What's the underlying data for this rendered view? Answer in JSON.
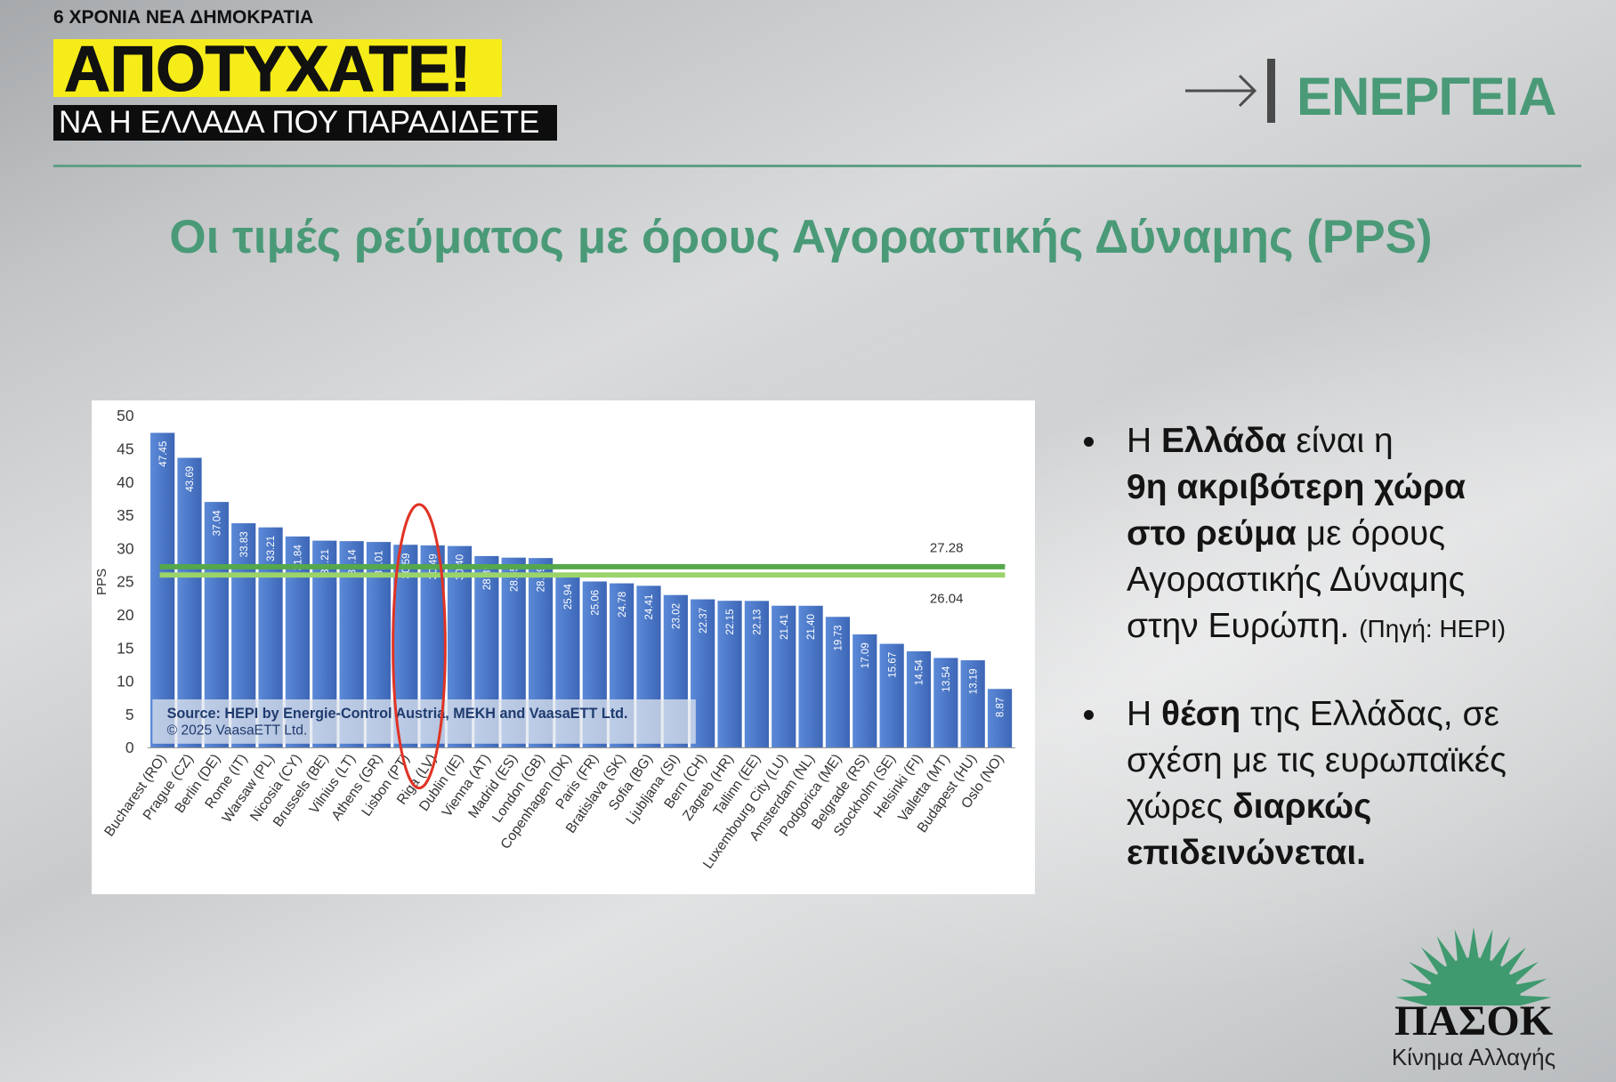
{
  "header": {
    "kicker": "6 ΧΡΟΝΙΑ ΝΕΑ ΔΗΜΟΚΡΑΤΙΑ",
    "headline": "ΑΠΟΤΥΧΑΤΕ!",
    "subheadline": "ΝΑ Η ΕΛΛΑΔΑ ΠΟΥ ΠΑΡΑΔΙΔΕΤΕ",
    "section_icon": "arrow-right-to-bar-icon",
    "section": "ΕΝΕΡΓΕΙΑ"
  },
  "slide": {
    "title": "Οι τιμές ρεύματος με όρους Αγοραστικής Δύναμης (PPS)"
  },
  "bullets": [
    {
      "lines": [
        [
          "Η ",
          "Ελλάδα",
          " είναι η"
        ],
        [
          "9η ακριβότερη χώρα"
        ],
        [
          "στο ρεύμα",
          " με όρους"
        ],
        [
          "Αγοραστικής Δύναμης"
        ],
        [
          "στην Ευρώπη. ",
          "(Πηγή: HEPI)"
        ]
      ]
    },
    {
      "lines": [
        [
          "Η ",
          "θέση",
          " της Ελλάδας, σε"
        ],
        [
          "σχέση με τις ευρωπαϊκές"
        ],
        [
          "χώρες ",
          "διαρκώς"
        ],
        [
          "επιδεινώνεται."
        ]
      ]
    }
  ],
  "logo": {
    "icon": "pasok-sun-icon",
    "name": "ΠΑΣΟΚ",
    "tagline": "Κίνημα Αλλαγής"
  },
  "colors": {
    "headline_yellow": "#f6ec1a",
    "brand_green": "#4a9a78",
    "rule_green": "#5f9f86",
    "logo_green": "#3f9a6f",
    "bar": "#4472c4",
    "ref_line_upper": "#55a84b",
    "ref_line_lower": "#9bd36b",
    "highlight": "#e03324",
    "source_text": "#1f3b6e"
  },
  "chart_data": {
    "type": "bar",
    "categories": [
      "Bucharest (RO)",
      "Prague (CZ)",
      "Berlin (DE)",
      "Rome (IT)",
      "Warsaw (PL)",
      "Nicosia (CY)",
      "Brussels (BE)",
      "Vilnius (LT)",
      "Athens (GR)",
      "Lisbon (PT)",
      "Riga (LV)",
      "Dublin (IE)",
      "Vienna (AT)",
      "Madrid (ES)",
      "London (GB)",
      "Copenhagen (DK)",
      "Paris (FR)",
      "Bratislava (SK)",
      "Sofia (BG)",
      "Ljubljana (SI)",
      "Bern (CH)",
      "Zagreb (HR)",
      "Tallinn (EE)",
      "Luxembourg City (LU)",
      "Amsterdam (NL)",
      "Podgorica (ME)",
      "Belgrade (RS)",
      "Stockholm (SE)",
      "Helsinki (FI)",
      "Valletta (MT)",
      "Budapest (HU)",
      "Oslo (NO)"
    ],
    "values": [
      47.45,
      43.69,
      37.04,
      33.83,
      33.21,
      31.84,
      31.21,
      31.14,
      31.01,
      30.59,
      30.49,
      30.4,
      28.89,
      28.65,
      28.59,
      25.94,
      25.06,
      24.78,
      24.41,
      23.02,
      22.37,
      22.15,
      22.13,
      21.41,
      21.4,
      19.73,
      17.09,
      15.67,
      14.54,
      13.54,
      13.19,
      8.87
    ],
    "ylabel": "PPS",
    "ylim": [
      0,
      50
    ],
    "yticks": [
      0,
      5,
      10,
      15,
      20,
      25,
      30,
      35,
      40,
      45,
      50
    ],
    "grid": false,
    "legend": "none",
    "reference_lines": [
      27.28,
      26.04
    ],
    "highlight_index": [
      9,
      10
    ],
    "source": [
      "Source: HEPI by Energie-Control Austria, MEKH and VaasaETT Ltd.",
      "© 2025 VaasaETT Ltd."
    ]
  }
}
